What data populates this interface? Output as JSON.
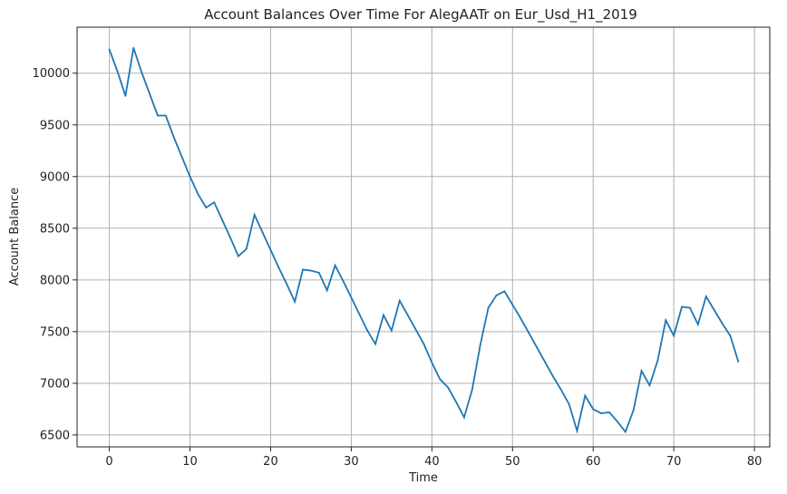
{
  "chart_data": {
    "type": "line",
    "title": "Account Balances Over Time For AlegAATr on Eur_Usd_H1_2019",
    "xlabel": "Time",
    "ylabel": "Account Balance",
    "xlim": [
      -4,
      81.9
    ],
    "ylim": [
      6385,
      10445
    ],
    "xticks": [
      0,
      10,
      20,
      30,
      40,
      50,
      60,
      70,
      80
    ],
    "yticks": [
      6500,
      7000,
      7500,
      8000,
      8500,
      9000,
      9500,
      10000
    ],
    "grid": true,
    "line_color": "#1f77b4",
    "series": [
      {
        "x": [
          0,
          1,
          2,
          3,
          4,
          5,
          6,
          7,
          8,
          9,
          10,
          11,
          12,
          13,
          14,
          15,
          16,
          17,
          18,
          19,
          20,
          21,
          22,
          23,
          24,
          25,
          26,
          27,
          28,
          29,
          30,
          31,
          32,
          33,
          34,
          35,
          36,
          37,
          38,
          39,
          40,
          41,
          42,
          43,
          44,
          45,
          46,
          47,
          48,
          49,
          50,
          51,
          52,
          53,
          54,
          55,
          56,
          57,
          58,
          59,
          60,
          61,
          62,
          63,
          64,
          65,
          66,
          67,
          68,
          69,
          70,
          71,
          72,
          73,
          74,
          75,
          76,
          77,
          78
        ],
        "values": [
          10230,
          10020,
          9780,
          10245,
          10010,
          9800,
          9590,
          9590,
          9380,
          9190,
          9000,
          8830,
          8700,
          8750,
          8580,
          8410,
          8230,
          8300,
          8630,
          8460,
          8290,
          8120,
          7960,
          7790,
          8100,
          8090,
          8070,
          7900,
          8140,
          7990,
          7830,
          7670,
          7510,
          7380,
          7660,
          7510,
          7800,
          7660,
          7520,
          7380,
          7200,
          7040,
          6960,
          6820,
          6670,
          6940,
          7370,
          7730,
          7850,
          7890,
          7760,
          7630,
          7490,
          7350,
          7210,
          7070,
          6940,
          6800,
          6540,
          6880,
          6750,
          6710,
          6720,
          6630,
          6530,
          6740,
          7120,
          6980,
          7220,
          7610,
          7460,
          7740,
          7730,
          7570,
          7840,
          7710,
          7580,
          7460,
          7210
        ]
      }
    ]
  }
}
